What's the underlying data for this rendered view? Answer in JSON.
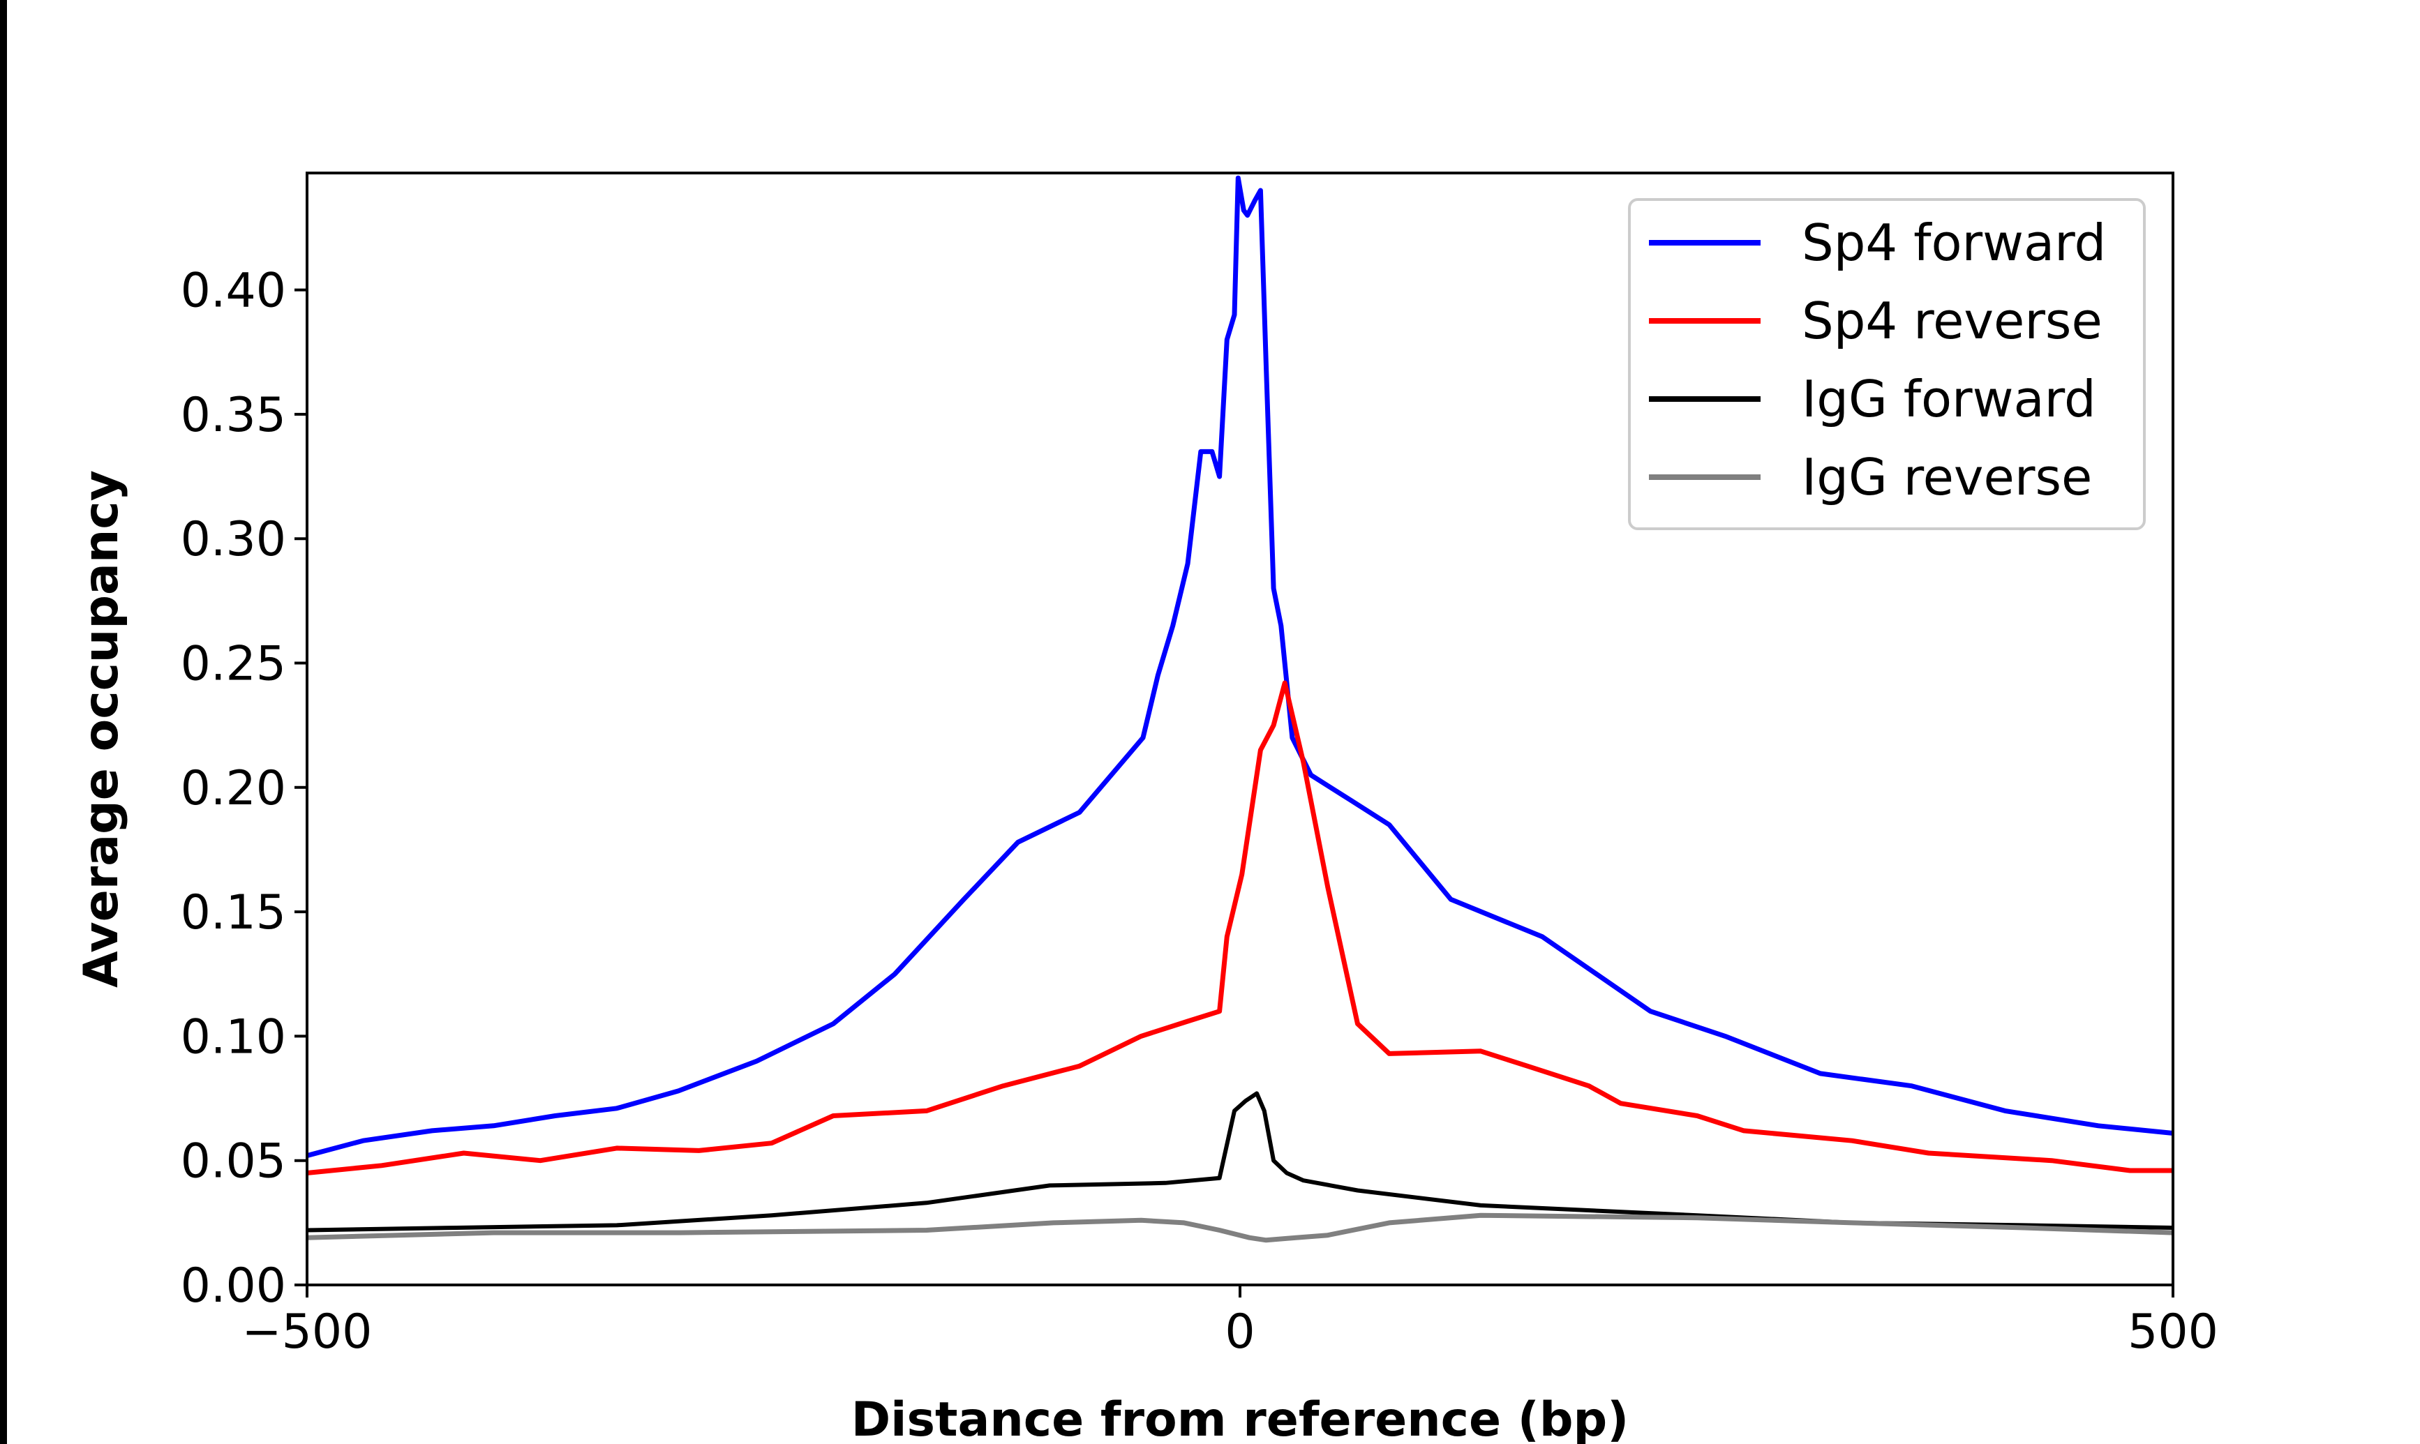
{
  "chart_data": {
    "type": "line",
    "title": "",
    "xlabel": "Distance from reference (bp)",
    "ylabel": "Average occupancy",
    "xlim": [
      -500,
      500
    ],
    "ylim": [
      0,
      0.447
    ],
    "xticks": [
      -500,
      0,
      500
    ],
    "xtick_labels": [
      "−500",
      "0",
      "500"
    ],
    "yticks": [
      0,
      0.05,
      0.1,
      0.15,
      0.2,
      0.25,
      0.3,
      0.35,
      0.4
    ],
    "ytick_labels": [
      "0.00",
      "0.05",
      "0.10",
      "0.15",
      "0.20",
      "0.25",
      "0.30",
      "0.35",
      "0.40"
    ],
    "grid": false,
    "legend_position": "top-right",
    "series": [
      {
        "name": "Sp4 forward",
        "color": "#0000ff",
        "x": [
          -500,
          -470,
          -433,
          -400,
          -367,
          -334,
          -301,
          -259,
          -218,
          -185,
          -148,
          -119,
          -86,
          -52,
          -44,
          -36,
          -28,
          -21,
          -15,
          -11,
          -7,
          -3,
          -1,
          2,
          4,
          8,
          11,
          14,
          18,
          22,
          28,
          38,
          59,
          80,
          113,
          162,
          220,
          260,
          311,
          360,
          410,
          460,
          500
        ],
        "y": [
          0.052,
          0.058,
          0.062,
          0.064,
          0.068,
          0.071,
          0.078,
          0.09,
          0.105,
          0.125,
          0.155,
          0.178,
          0.19,
          0.22,
          0.245,
          0.265,
          0.29,
          0.335,
          0.335,
          0.325,
          0.38,
          0.39,
          0.445,
          0.432,
          0.43,
          0.436,
          0.44,
          0.37,
          0.28,
          0.265,
          0.22,
          0.205,
          0.195,
          0.185,
          0.155,
          0.14,
          0.11,
          0.1,
          0.085,
          0.08,
          0.07,
          0.064,
          0.061
        ]
      },
      {
        "name": "Sp4 reverse",
        "color": "#ff0000",
        "x": [
          -500,
          -460,
          -416,
          -375,
          -334,
          -290,
          -251,
          -218,
          -168,
          -127,
          -86,
          -53,
          -28,
          -11,
          -7,
          1,
          11,
          18,
          24,
          34,
          47,
          63,
          80,
          129,
          154,
          187,
          204,
          245,
          270,
          328,
          369,
          435,
          477,
          500
        ],
        "y": [
          0.045,
          0.048,
          0.053,
          0.05,
          0.055,
          0.054,
          0.057,
          0.068,
          0.07,
          0.08,
          0.088,
          0.1,
          0.106,
          0.11,
          0.14,
          0.165,
          0.215,
          0.225,
          0.242,
          0.21,
          0.16,
          0.105,
          0.093,
          0.094,
          0.088,
          0.08,
          0.073,
          0.068,
          0.062,
          0.058,
          0.053,
          0.05,
          0.046,
          0.046
        ]
      },
      {
        "name": "IgG forward",
        "color": "#000000",
        "x": [
          -500,
          -420,
          -334,
          -251,
          -168,
          -102,
          -40,
          -11,
          -3,
          3,
          9,
          13,
          18,
          25,
          34,
          63,
          129,
          245,
          328,
          420,
          500
        ],
        "y": [
          0.022,
          0.023,
          0.024,
          0.028,
          0.033,
          0.04,
          0.041,
          0.043,
          0.07,
          0.074,
          0.077,
          0.07,
          0.05,
          0.045,
          0.042,
          0.038,
          0.032,
          0.028,
          0.025,
          0.024,
          0.023
        ]
      },
      {
        "name": "IgG reverse",
        "color": "#808080",
        "x": [
          -500,
          -400,
          -300,
          -168,
          -100,
          -53,
          -30,
          -11,
          5,
          14,
          30,
          47,
          80,
          129,
          245,
          328,
          420,
          500
        ],
        "y": [
          0.019,
          0.021,
          0.021,
          0.022,
          0.025,
          0.026,
          0.025,
          0.022,
          0.019,
          0.018,
          0.019,
          0.02,
          0.025,
          0.028,
          0.027,
          0.025,
          0.023,
          0.021
        ]
      }
    ]
  }
}
